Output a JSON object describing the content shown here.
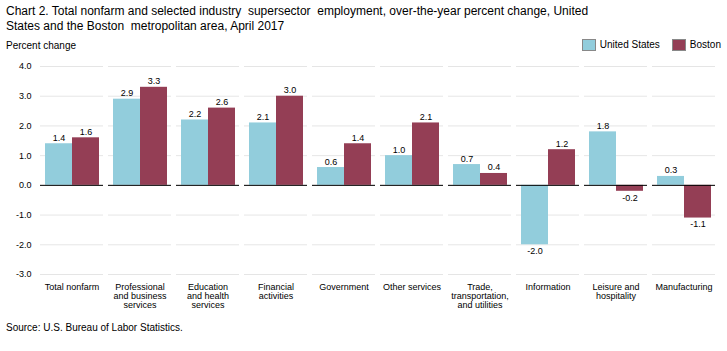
{
  "chart_data": {
    "type": "bar",
    "title": "Chart 2. Total nonfarm and selected industry  supersector  employment, over-the-year percent change, United\nStates and the Boston  metropolitan area, April 2017",
    "ylabel": "Percent change",
    "source": "Source: U.S. Bureau of Labor Statistics.",
    "categories": [
      "Total nonfarm",
      "Professional\nand business\nservices",
      "Education\nand health\nservices",
      "Financial\nactivities",
      "Government",
      "Other services",
      "Trade,\ntransportation,\nand utilities",
      "Information",
      "Leisure and\nhospitality",
      "Manufacturing"
    ],
    "series": [
      {
        "name": "United States",
        "color": "#92CDDC",
        "values": [
          1.4,
          2.9,
          2.2,
          2.1,
          0.6,
          1.0,
          0.7,
          -2.0,
          1.8,
          0.3
        ],
        "value_labels": [
          "1.4",
          "2.9",
          "2.2",
          "2.1",
          "0.6",
          "1.0",
          "0.7",
          "-2.0",
          "1.8",
          "0.3"
        ]
      },
      {
        "name": "Boston",
        "color": "#943E55",
        "values": [
          1.6,
          3.3,
          2.6,
          3.0,
          1.4,
          2.1,
          0.4,
          1.2,
          -0.2,
          -1.1
        ],
        "value_labels": [
          "1.6",
          "3.3",
          "2.6",
          "3.0",
          "1.4",
          "2.1",
          "0.4",
          "1.2",
          "-0.2",
          "-1.1"
        ]
      }
    ],
    "ylim": [
      -3.0,
      4.0
    ],
    "yticks": [
      {
        "value": -3.0,
        "label": "-3.0"
      },
      {
        "value": -2.0,
        "label": "-2.0"
      },
      {
        "value": -1.0,
        "label": "-1.0"
      },
      {
        "value": 0.0,
        "label": "0.0"
      },
      {
        "value": 1.0,
        "label": "1.0"
      },
      {
        "value": 2.0,
        "label": "2.0"
      },
      {
        "value": 3.0,
        "label": "3.0"
      },
      {
        "value": 4.0,
        "label": "4.0"
      }
    ],
    "grid": true,
    "legend": "upper right",
    "data_labels": true
  }
}
